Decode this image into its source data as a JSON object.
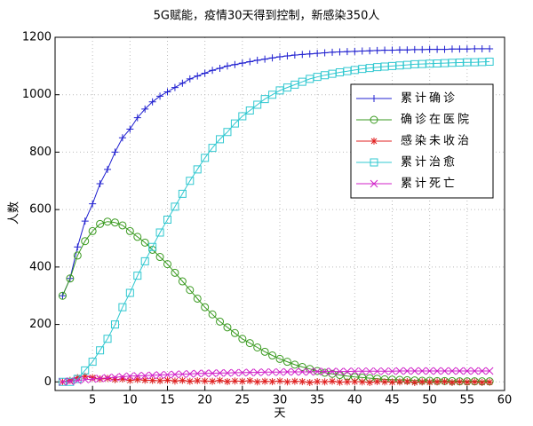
{
  "chart_data": {
    "type": "line",
    "title": "5G赋能，疫情30天得到控制，新感染350人",
    "x_label": "天",
    "y_label": "人数",
    "x": [
      1,
      2,
      3,
      4,
      5,
      6,
      7,
      8,
      9,
      10,
      11,
      12,
      13,
      14,
      15,
      16,
      17,
      18,
      19,
      20,
      21,
      22,
      23,
      24,
      25,
      26,
      27,
      28,
      29,
      30,
      31,
      32,
      33,
      34,
      35,
      36,
      37,
      38,
      39,
      40,
      41,
      42,
      43,
      44,
      45,
      46,
      47,
      48,
      49,
      50,
      51,
      52,
      53,
      54,
      55,
      56,
      57,
      58
    ],
    "xlim": [
      0,
      60
    ],
    "xticks": [
      5,
      10,
      15,
      20,
      25,
      30,
      35,
      40,
      45,
      50,
      55,
      60
    ],
    "ylim": [
      -30,
      1200
    ],
    "yticks": [
      0,
      200,
      400,
      600,
      800,
      1000,
      1200
    ],
    "grid": true,
    "legend": "upper right",
    "series": [
      {
        "name": "累计确诊",
        "color": "#2020d0",
        "marker": "+",
        "values": [
          300,
          360,
          470,
          560,
          620,
          690,
          740,
          800,
          850,
          880,
          920,
          950,
          975,
          995,
          1010,
          1025,
          1040,
          1055,
          1065,
          1075,
          1085,
          1092,
          1100,
          1105,
          1110,
          1115,
          1120,
          1124,
          1128,
          1132,
          1135,
          1138,
          1140,
          1142,
          1144,
          1146,
          1148,
          1149,
          1150,
          1151,
          1152,
          1153,
          1154,
          1155,
          1155,
          1156,
          1156,
          1157,
          1157,
          1158,
          1158,
          1158,
          1159,
          1159,
          1159,
          1160,
          1160,
          1160
        ]
      },
      {
        "name": "确诊在医院",
        "color": "#3a9a20",
        "marker": "o",
        "values": [
          300,
          360,
          440,
          490,
          525,
          550,
          558,
          555,
          545,
          525,
          505,
          485,
          460,
          435,
          410,
          380,
          350,
          320,
          290,
          260,
          235,
          210,
          190,
          170,
          150,
          135,
          120,
          105,
          92,
          80,
          70,
          60,
          52,
          45,
          38,
          32,
          28,
          24,
          20,
          17,
          15,
          13,
          11,
          9,
          8,
          7,
          6,
          5,
          4,
          4,
          3,
          3,
          3,
          2,
          2,
          2,
          2,
          2
        ]
      },
      {
        "name": "感染未收治",
        "color": "#e02020",
        "marker": "*",
        "values": [
          0,
          5,
          15,
          20,
          15,
          10,
          12,
          8,
          10,
          5,
          8,
          6,
          5,
          4,
          6,
          3,
          5,
          2,
          4,
          3,
          2,
          5,
          1,
          3,
          2,
          4,
          0,
          2,
          1,
          3,
          0,
          2,
          1,
          -2,
          1,
          0,
          2,
          -1,
          0,
          1,
          0,
          -2,
          1,
          0,
          -1,
          0,
          1,
          -2,
          0,
          -1,
          0,
          1,
          -2,
          0,
          -1,
          0,
          -2,
          -1
        ]
      },
      {
        "name": "累计治愈",
        "color": "#30c8d0",
        "marker": "s",
        "values": [
          0,
          0,
          10,
          40,
          70,
          110,
          150,
          200,
          260,
          310,
          370,
          420,
          470,
          520,
          565,
          610,
          655,
          700,
          740,
          780,
          815,
          845,
          870,
          900,
          925,
          945,
          965,
          985,
          1000,
          1015,
          1025,
          1035,
          1045,
          1055,
          1062,
          1068,
          1073,
          1078,
          1082,
          1086,
          1090,
          1093,
          1096,
          1098,
          1100,
          1102,
          1104,
          1106,
          1107,
          1108,
          1109,
          1110,
          1111,
          1112,
          1113,
          1113,
          1114,
          1115
        ]
      },
      {
        "name": "累计死亡",
        "color": "#d020c8",
        "marker": "x",
        "values": [
          0,
          2,
          5,
          8,
          10,
          12,
          14,
          16,
          18,
          20,
          21,
          22,
          23,
          24,
          25,
          26,
          27,
          28,
          29,
          30,
          30,
          31,
          31,
          32,
          32,
          33,
          33,
          34,
          34,
          34,
          35,
          35,
          35,
          35,
          36,
          36,
          36,
          36,
          36,
          37,
          37,
          37,
          37,
          37,
          37,
          38,
          38,
          38,
          38,
          38,
          38,
          38,
          38,
          38,
          38,
          38,
          38,
          38
        ]
      }
    ]
  }
}
